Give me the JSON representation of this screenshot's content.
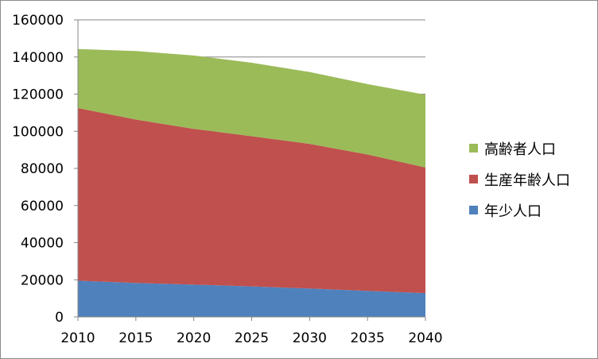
{
  "chart_data": {
    "type": "area",
    "stacked": true,
    "title": "",
    "xlabel": "",
    "ylabel": "",
    "x": [
      2010,
      2015,
      2020,
      2025,
      2030,
      2035,
      2040
    ],
    "ylim": [
      0,
      160000
    ],
    "yticks": [
      0,
      20000,
      40000,
      60000,
      80000,
      100000,
      120000,
      140000,
      160000
    ],
    "grid": true,
    "legend_position": "right",
    "series": [
      {
        "name": "年少人口",
        "color": "#4f81bd",
        "values": [
          19500,
          18300,
          17400,
          16400,
          15300,
          14000,
          12800
        ]
      },
      {
        "name": "生産年齢人口",
        "color": "#c0504d",
        "values": [
          93000,
          88000,
          83900,
          80900,
          77900,
          73500,
          67700
        ]
      },
      {
        "name": "高齢者人口",
        "color": "#9bbb59",
        "values": [
          31800,
          36900,
          39500,
          39600,
          38700,
          37900,
          39200
        ]
      }
    ],
    "legend_order": [
      "高齢者人口",
      "生産年齢人口",
      "年少人口"
    ]
  }
}
